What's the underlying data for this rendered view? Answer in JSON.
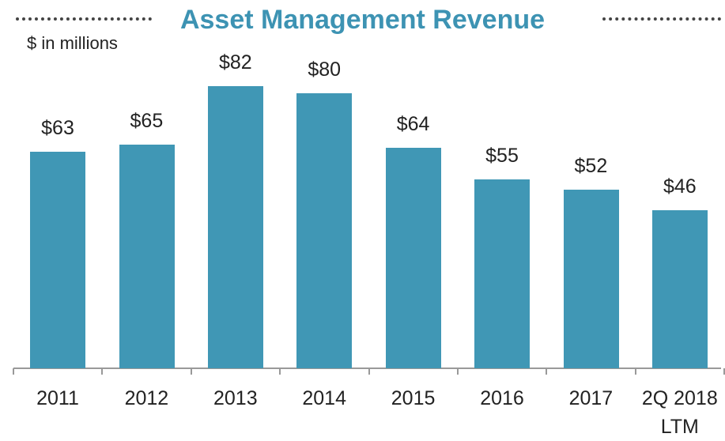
{
  "chart_data": {
    "type": "bar",
    "title": "Asset Management Revenue",
    "subtitle": "$ in millions",
    "categories": [
      "2011",
      "2012",
      "2013",
      "2014",
      "2015",
      "2016",
      "2017",
      "2Q 2018 LTM"
    ],
    "values": [
      63,
      65,
      82,
      80,
      64,
      55,
      52,
      46
    ],
    "value_labels": [
      "$63",
      "$65",
      "$82",
      "$80",
      "$64",
      "$55",
      "$52",
      "$46"
    ],
    "color": "#4097b5"
  }
}
